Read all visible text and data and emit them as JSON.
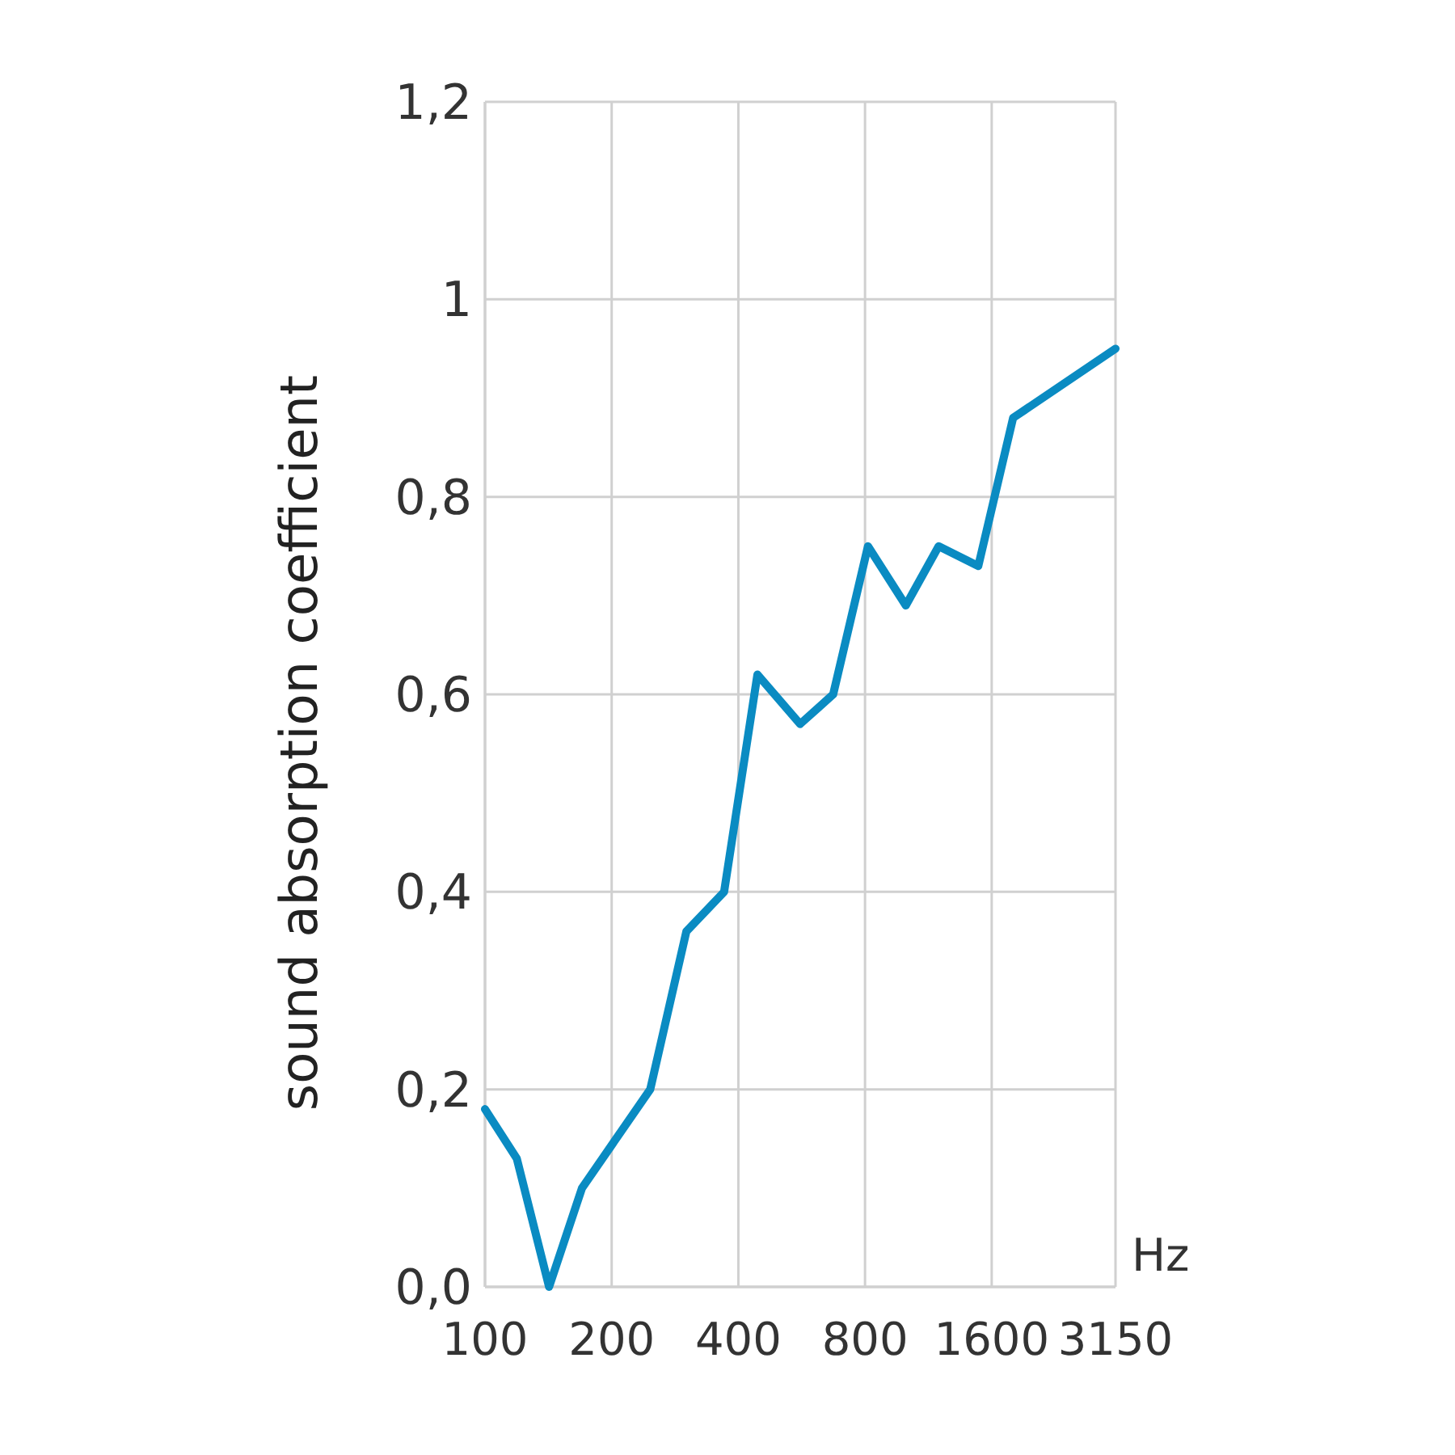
{
  "chart_data": {
    "type": "line",
    "ylabel": "sound absorption coefficient",
    "xlabel": "Hz",
    "log": "x",
    "x": [
      100,
      119,
      142,
      170,
      247,
      301,
      370,
      444,
      561,
      672,
      813,
      1000,
      1197,
      1487,
      1799,
      3150
    ],
    "series": [
      {
        "color": "#0a8bc2",
        "values": [
          0.18,
          0.13,
          0.0,
          0.1,
          0.2,
          0.36,
          0.4,
          0.62,
          0.57,
          0.6,
          0.75,
          0.69,
          0.75,
          0.73,
          0.88,
          0.95
        ]
      }
    ],
    "xlim": [
      100,
      3150
    ],
    "xticks": [
      100,
      200,
      400,
      800,
      1600,
      3150
    ],
    "ylim": [
      0,
      1.2
    ],
    "yticks": [
      {
        "value": 0,
        "label": "0,0"
      },
      {
        "value": 0.2,
        "label": "0,2"
      },
      {
        "value": 0.4,
        "label": "0,4"
      },
      {
        "value": 0.6,
        "label": "0,6"
      },
      {
        "value": 0.8,
        "label": "0,8"
      },
      {
        "value": 1,
        "label": "1"
      },
      {
        "value": 1.2,
        "label": "1,2"
      }
    ],
    "grid": true,
    "marker": "none",
    "line_style": "solid"
  }
}
